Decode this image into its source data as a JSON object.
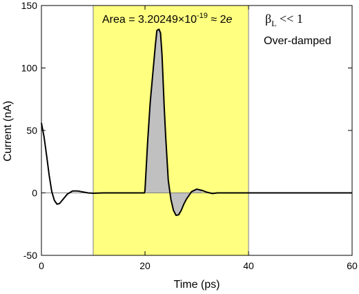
{
  "chart_data": {
    "type": "line",
    "title": "",
    "xlabel": "Time (ps)",
    "ylabel": "Current (nA)",
    "xlim": [
      0,
      60
    ],
    "ylim": [
      -50,
      150
    ],
    "x_ticks": [
      0,
      20,
      40,
      60
    ],
    "y_ticks": [
      -50,
      0,
      50,
      100,
      150
    ],
    "x_tick_labels": [
      "0",
      "20",
      "40",
      "60"
    ],
    "y_tick_labels": [
      "-50",
      "0",
      "50",
      "100",
      "150"
    ],
    "grid": false,
    "legend": "none",
    "highlight_region": {
      "x_start": 10,
      "x_end": 40,
      "color": "#ffff80"
    },
    "filled_region": {
      "x_start": 20,
      "x_end": 31,
      "color": "#c0c0c0"
    },
    "zero_line": true,
    "series": [
      {
        "color": "#000000",
        "x": [
          0,
          0.5,
          1,
          1.5,
          2,
          2.5,
          3,
          3.5,
          4,
          5,
          6,
          7,
          8,
          9,
          10,
          12,
          14,
          16,
          18,
          19.9,
          20,
          20.5,
          21,
          21.5,
          22,
          22.3,
          22.7,
          23,
          23.3,
          23.7,
          24,
          24.5,
          25,
          25.5,
          26,
          26.5,
          27,
          27.5,
          28,
          29,
          30,
          31,
          32,
          33,
          34,
          36,
          40,
          45,
          50,
          55,
          60
        ],
        "y": [
          56,
          45,
          30,
          14,
          1,
          -6,
          -9,
          -8.5,
          -6,
          -1,
          1.5,
          1.5,
          0.8,
          0,
          -0.3,
          0,
          0,
          0,
          0,
          0,
          2,
          40,
          72,
          95,
          118,
          130,
          131,
          128,
          110,
          70,
          45,
          10,
          -5,
          -14,
          -18,
          -17.5,
          -14,
          -9,
          -5,
          1,
          3,
          2,
          0.5,
          -0.5,
          0,
          0,
          0,
          0,
          0,
          0,
          0
        ]
      }
    ],
    "annotations": {
      "area": {
        "prefix": "Area = 3.20249×10",
        "exponent": "-19",
        "approx": " ≈ 2",
        "symbol": "e"
      },
      "beta": {
        "symbol": "β",
        "subscript": "L",
        "relation": " << 1"
      },
      "regime": "Over-damped"
    }
  }
}
